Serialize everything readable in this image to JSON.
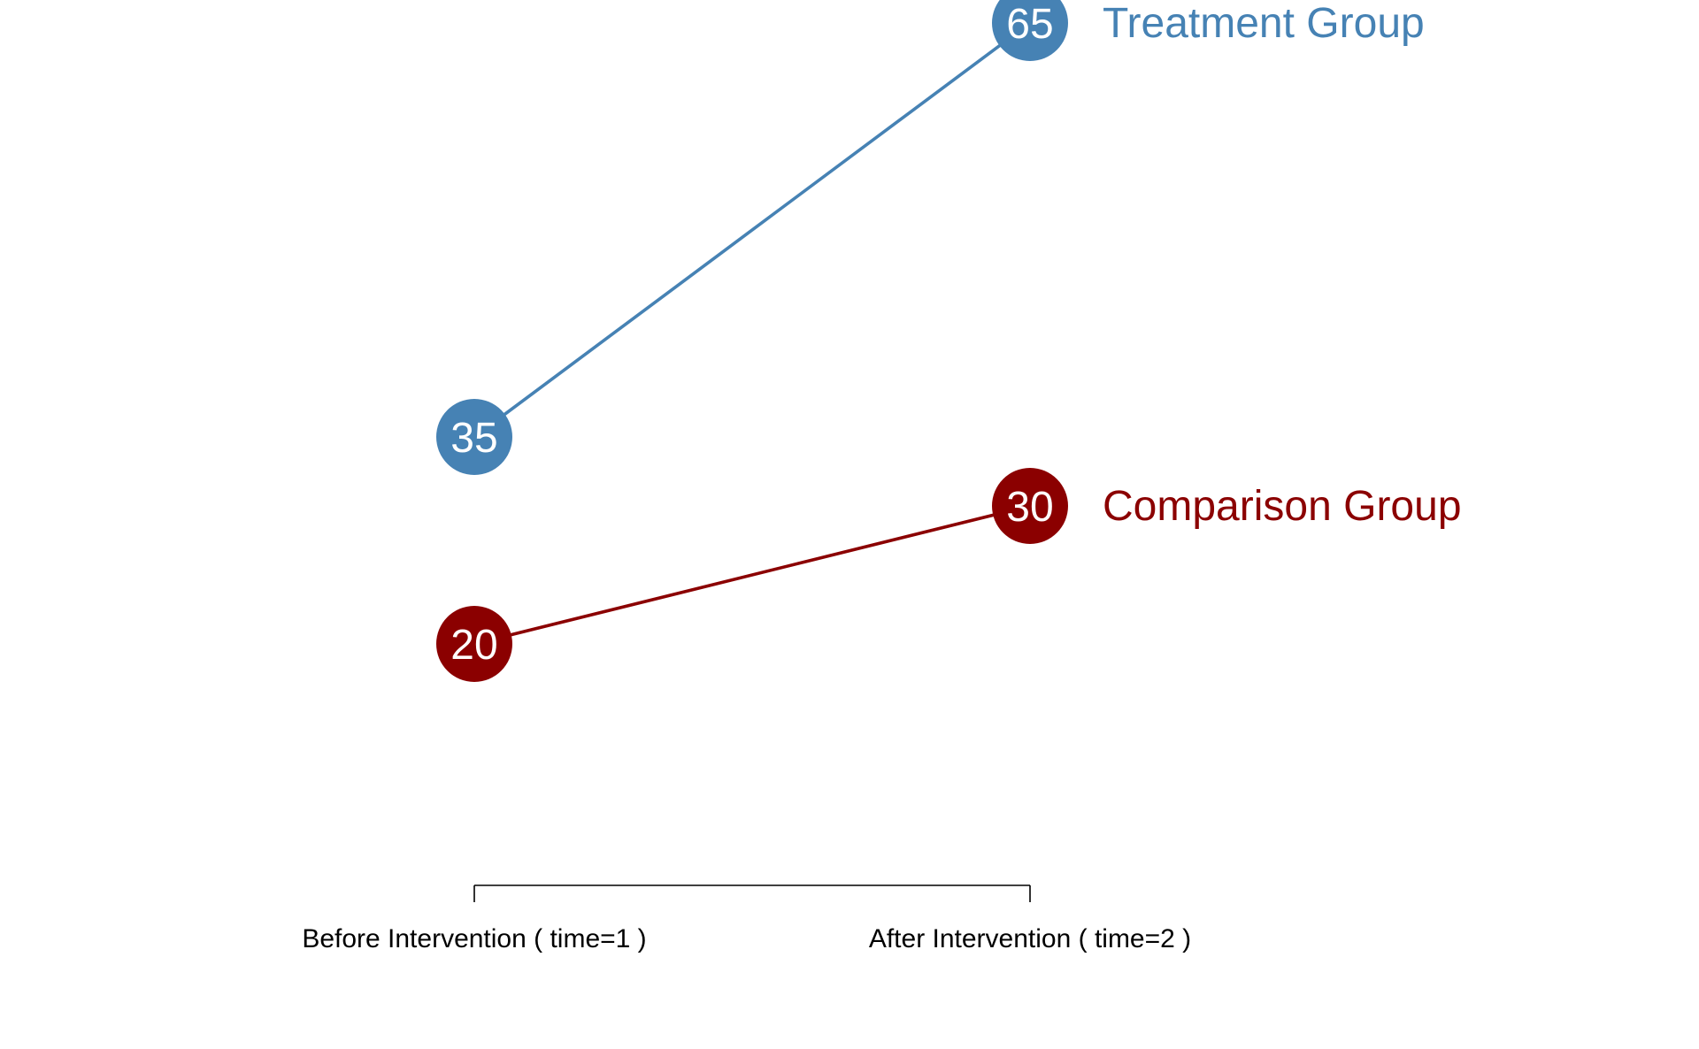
{
  "chart_data": {
    "type": "line",
    "categories": [
      "Before Intervention ( time=1 )",
      "After Intervention ( time=2 )"
    ],
    "series": [
      {
        "name": "Treatment Group",
        "values": [
          35,
          65
        ],
        "point_labels": [
          "35",
          "65"
        ],
        "color": "#4682B4"
      },
      {
        "name": "Comparison Group",
        "values": [
          20,
          30
        ],
        "point_labels": [
          "20",
          "30"
        ],
        "color": "#8B0000"
      }
    ],
    "title": "",
    "xlabel": "",
    "ylabel": "",
    "y_axis_shown": false,
    "grid": false,
    "legend": "direct labels at line ends"
  }
}
